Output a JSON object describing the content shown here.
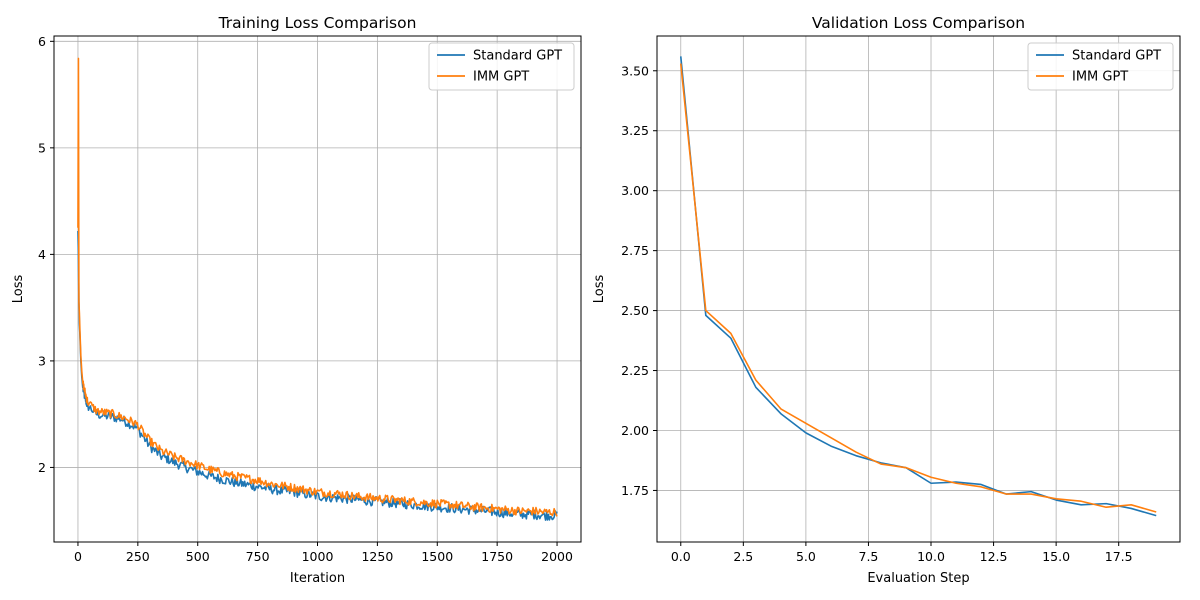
{
  "colors": {
    "standard": "#1f77b4",
    "imm": "#ff7f0e",
    "grid": "#b0b0b0"
  },
  "legend": [
    "Standard GPT",
    "IMM GPT"
  ],
  "chart_data": [
    {
      "type": "line",
      "title": "Training Loss Comparison",
      "xlabel": "Iteration",
      "ylabel": "Loss",
      "xlim": [
        -100,
        2100
      ],
      "ylim": [
        1.3,
        6.05
      ],
      "xticks": [
        0,
        250,
        500,
        750,
        1000,
        1250,
        1500,
        1750,
        2000
      ],
      "yticks": [
        2,
        3,
        4,
        5,
        6
      ],
      "grid": true,
      "legend_position": "top-right",
      "series": [
        {
          "name": "Standard GPT",
          "x": [
            0,
            2,
            4,
            6,
            8,
            12,
            16,
            20,
            30,
            40,
            60,
            80,
            100,
            125,
            150,
            175,
            200,
            225,
            250,
            275,
            300,
            325,
            350,
            375,
            400,
            450,
            500,
            550,
            600,
            650,
            700,
            750,
            800,
            850,
            900,
            950,
            1000,
            1050,
            1100,
            1150,
            1200,
            1250,
            1300,
            1350,
            1400,
            1450,
            1500,
            1550,
            1600,
            1650,
            1700,
            1750,
            1800,
            1850,
            1900,
            1950,
            2000
          ],
          "y": [
            4.22,
            4.0,
            3.55,
            3.35,
            3.25,
            3.0,
            2.85,
            2.75,
            2.65,
            2.58,
            2.54,
            2.5,
            2.49,
            2.48,
            2.47,
            2.46,
            2.43,
            2.4,
            2.36,
            2.28,
            2.2,
            2.15,
            2.1,
            2.08,
            2.05,
            2.0,
            1.96,
            1.92,
            1.89,
            1.86,
            1.84,
            1.82,
            1.8,
            1.78,
            1.77,
            1.75,
            1.73,
            1.72,
            1.71,
            1.7,
            1.69,
            1.68,
            1.67,
            1.66,
            1.65,
            1.64,
            1.63,
            1.62,
            1.61,
            1.6,
            1.59,
            1.58,
            1.57,
            1.56,
            1.56,
            1.55,
            1.55
          ]
        },
        {
          "name": "IMM GPT",
          "x": [
            0,
            2,
            4,
            6,
            8,
            12,
            16,
            20,
            30,
            40,
            60,
            80,
            100,
            125,
            150,
            175,
            200,
            225,
            250,
            275,
            300,
            325,
            350,
            375,
            400,
            450,
            500,
            550,
            600,
            650,
            700,
            750,
            800,
            850,
            900,
            950,
            1000,
            1050,
            1100,
            1150,
            1200,
            1250,
            1300,
            1350,
            1400,
            1450,
            1500,
            1550,
            1600,
            1650,
            1700,
            1750,
            1800,
            1850,
            1900,
            1950,
            2000
          ],
          "y": [
            4.25,
            5.84,
            3.55,
            3.45,
            3.3,
            3.05,
            2.9,
            2.8,
            2.7,
            2.62,
            2.57,
            2.53,
            2.52,
            2.51,
            2.5,
            2.48,
            2.46,
            2.43,
            2.4,
            2.32,
            2.25,
            2.2,
            2.15,
            2.13,
            2.1,
            2.06,
            2.02,
            1.98,
            1.95,
            1.92,
            1.9,
            1.88,
            1.85,
            1.83,
            1.81,
            1.79,
            1.77,
            1.76,
            1.75,
            1.73,
            1.72,
            1.71,
            1.7,
            1.69,
            1.68,
            1.67,
            1.66,
            1.65,
            1.64,
            1.63,
            1.62,
            1.61,
            1.6,
            1.59,
            1.59,
            1.58,
            1.58
          ]
        }
      ]
    },
    {
      "type": "line",
      "title": "Validation Loss Comparison",
      "xlabel": "Evaluation Step",
      "ylabel": "Loss",
      "xlim": [
        -0.95,
        19.95
      ],
      "ylim": [
        1.535,
        3.645
      ],
      "xticks": [
        0.0,
        2.5,
        5.0,
        7.5,
        10.0,
        12.5,
        15.0,
        17.5
      ],
      "xticklabels": [
        "0.0",
        "2.5",
        "5.0",
        "7.5",
        "10.0",
        "12.5",
        "15.0",
        "17.5"
      ],
      "yticks": [
        1.75,
        2.0,
        2.25,
        2.5,
        2.75,
        3.0,
        3.25,
        3.5
      ],
      "yticklabels": [
        "1.75",
        "2.00",
        "2.25",
        "2.50",
        "2.75",
        "3.00",
        "3.25",
        "3.50"
      ],
      "grid": true,
      "legend_position": "top-right",
      "series": [
        {
          "name": "Standard GPT",
          "x": [
            0,
            1,
            2,
            3,
            4,
            5,
            6,
            7,
            8,
            9,
            10,
            11,
            12,
            13,
            14,
            15,
            16,
            17,
            18,
            19
          ],
          "y": [
            3.56,
            2.48,
            2.385,
            2.18,
            2.07,
            1.99,
            1.935,
            1.895,
            1.865,
            1.845,
            1.78,
            1.785,
            1.775,
            1.735,
            1.745,
            1.71,
            1.69,
            1.695,
            1.675,
            1.645
          ]
        },
        {
          "name": "IMM GPT",
          "x": [
            0,
            1,
            2,
            3,
            4,
            5,
            6,
            7,
            8,
            9,
            10,
            11,
            12,
            13,
            14,
            15,
            16,
            17,
            18,
            19
          ],
          "y": [
            3.53,
            2.5,
            2.405,
            2.21,
            2.09,
            2.03,
            1.97,
            1.91,
            1.86,
            1.845,
            1.805,
            1.78,
            1.765,
            1.735,
            1.735,
            1.715,
            1.705,
            1.68,
            1.69,
            1.66
          ]
        }
      ]
    }
  ]
}
